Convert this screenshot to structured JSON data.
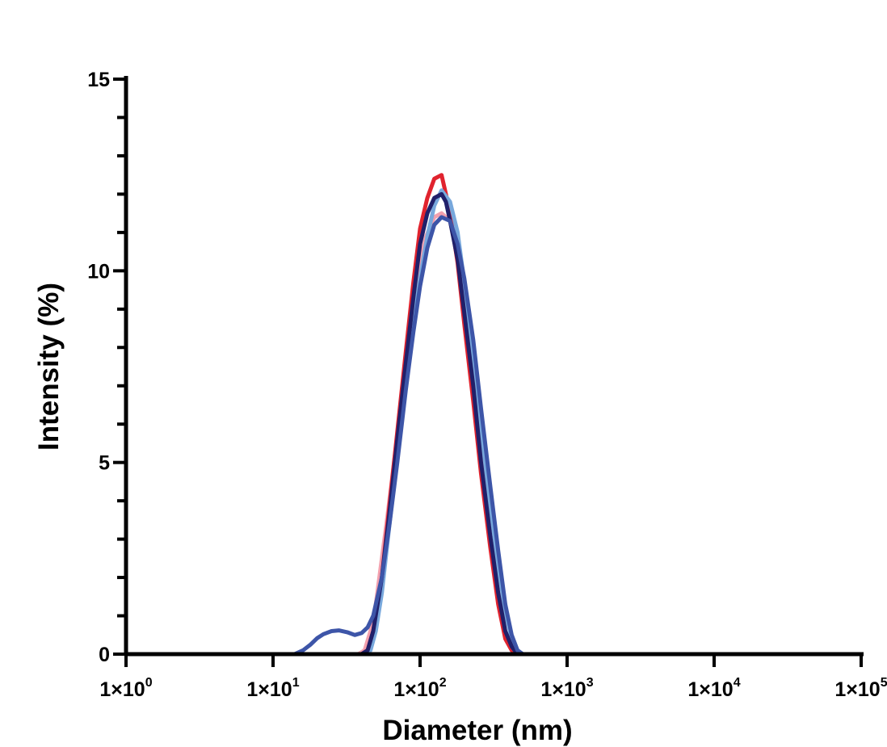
{
  "chart_data": {
    "type": "line",
    "xlabel": "Diameter (nm)",
    "ylabel": "Intensity (%)",
    "xscale": "log",
    "xlim": [
      1,
      100000
    ],
    "ylim": [
      0,
      15
    ],
    "x_ticks": [
      {
        "value": 1,
        "base": "1×10",
        "exp": "0"
      },
      {
        "value": 10,
        "base": "1×10",
        "exp": "1"
      },
      {
        "value": 100,
        "base": "1×10",
        "exp": "2"
      },
      {
        "value": 1000,
        "base": "1×10",
        "exp": "3"
      },
      {
        "value": 10000,
        "base": "1×10",
        "exp": "4"
      },
      {
        "value": 100000,
        "base": "1×10",
        "exp": "5"
      }
    ],
    "y_ticks": [
      {
        "value": 0,
        "label": "0"
      },
      {
        "value": 5,
        "label": "5"
      },
      {
        "value": 10,
        "label": "10"
      },
      {
        "value": 15,
        "label": "15"
      }
    ],
    "y_minor_step": 1,
    "grid": false,
    "legend": "none",
    "series": [
      {
        "color": "#f2a0ae",
        "x": [
          1,
          38,
          42,
          46,
          50,
          60,
          70,
          80,
          90,
          100,
          110,
          125,
          140,
          160,
          180,
          200,
          230,
          260,
          300,
          340,
          380,
          420,
          460,
          500,
          530,
          10000
        ],
        "y": [
          0,
          0,
          0.1,
          0.6,
          1.3,
          3.6,
          5.7,
          7.7,
          9.2,
          10.2,
          10.9,
          11.4,
          11.5,
          11.3,
          10.5,
          9.2,
          7.2,
          5.1,
          3.0,
          1.6,
          0.6,
          0.2,
          0.05,
          0,
          0,
          0
        ]
      },
      {
        "color": "#e0232e",
        "x": [
          1,
          40,
          44,
          48,
          55,
          62,
          70,
          80,
          90,
          100,
          112,
          125,
          140,
          150,
          160,
          180,
          200,
          230,
          260,
          300,
          340,
          380,
          420,
          460,
          500,
          10000
        ],
        "y": [
          0,
          0,
          0.1,
          0.6,
          2.0,
          3.9,
          5.8,
          7.9,
          9.7,
          11.1,
          11.9,
          12.4,
          12.5,
          12.0,
          11.5,
          10.2,
          8.6,
          6.6,
          4.7,
          2.8,
          1.3,
          0.4,
          0.1,
          0,
          0,
          0
        ]
      },
      {
        "color": "#78a8dc",
        "x": [
          1,
          42,
          46,
          50,
          55,
          62,
          70,
          80,
          90,
          100,
          112,
          125,
          140,
          160,
          180,
          200,
          230,
          260,
          300,
          340,
          380,
          420,
          460,
          500,
          550,
          10000
        ],
        "y": [
          0,
          0,
          0.1,
          0.6,
          1.6,
          3.4,
          5.1,
          7.0,
          8.6,
          9.8,
          10.9,
          11.7,
          12.1,
          11.8,
          11.0,
          9.7,
          7.8,
          5.9,
          3.9,
          2.3,
          1.1,
          0.4,
          0.1,
          0,
          0,
          0
        ]
      },
      {
        "color": "#20206a",
        "x": [
          1,
          40,
          44,
          48,
          55,
          62,
          70,
          80,
          90,
          100,
          112,
          125,
          140,
          150,
          160,
          180,
          200,
          230,
          260,
          300,
          340,
          380,
          420,
          460,
          500,
          10000
        ],
        "y": [
          0,
          0,
          0.1,
          0.6,
          2.0,
          3.7,
          5.6,
          7.6,
          9.3,
          10.7,
          11.5,
          11.9,
          12.0,
          11.8,
          11.3,
          10.3,
          8.9,
          7.0,
          5.0,
          3.1,
          1.6,
          0.6,
          0.2,
          0,
          0,
          0
        ]
      },
      {
        "color": "#3d55a8",
        "x": [
          1,
          14,
          16,
          18,
          20,
          22,
          25,
          28,
          32,
          36,
          40,
          44,
          48,
          55,
          62,
          70,
          80,
          90,
          100,
          112,
          125,
          140,
          160,
          180,
          200,
          230,
          260,
          300,
          340,
          380,
          420,
          460,
          500,
          550,
          10000
        ],
        "y": [
          0,
          0,
          0.1,
          0.25,
          0.42,
          0.52,
          0.6,
          0.62,
          0.57,
          0.5,
          0.55,
          0.7,
          1.0,
          2.0,
          3.4,
          5.0,
          6.9,
          8.4,
          9.6,
          10.6,
          11.2,
          11.4,
          11.3,
          10.7,
          9.8,
          8.2,
          6.4,
          4.4,
          2.7,
          1.3,
          0.5,
          0.1,
          0,
          0,
          0
        ]
      }
    ]
  }
}
